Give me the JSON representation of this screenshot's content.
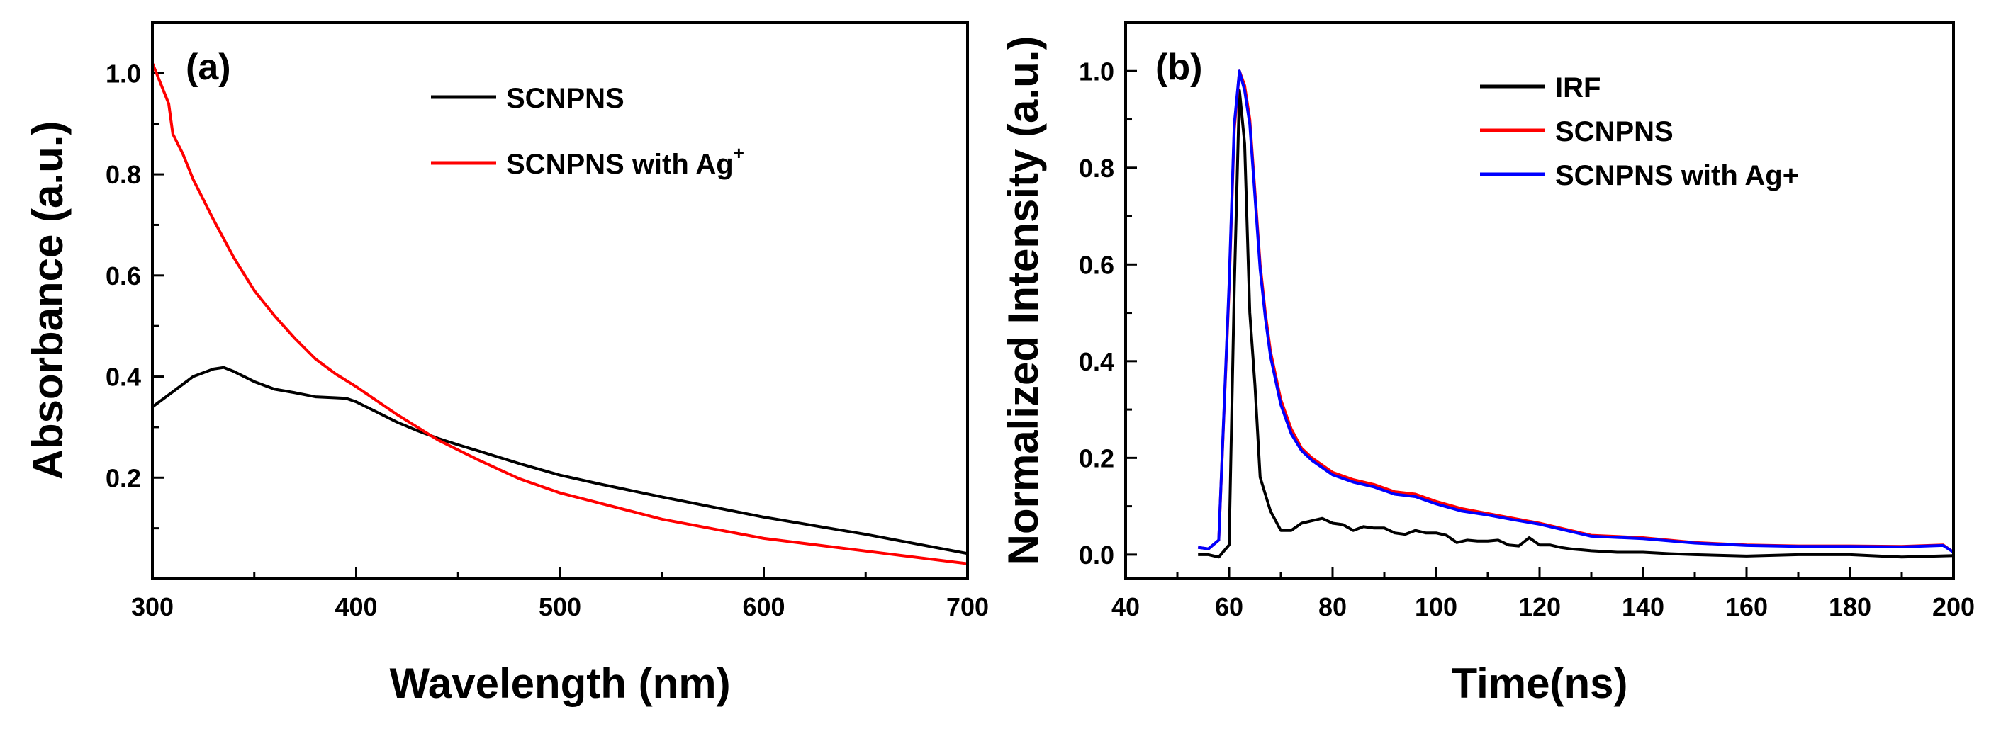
{
  "chart_data": [
    {
      "type": "line",
      "panel_label": "(a)",
      "xlabel": "Wavelength (nm)",
      "ylabel": "Absorbance (a.u.)",
      "xlim": [
        300,
        700
      ],
      "ylim": [
        0,
        1.1
      ],
      "xticks": [
        300,
        400,
        500,
        600,
        700
      ],
      "yticks": [
        0.2,
        0.4,
        0.6,
        0.8,
        1.0
      ],
      "xtick_labels": [
        "300",
        "400",
        "500",
        "600",
        "700"
      ],
      "ytick_labels": [
        "0.2",
        "0.4",
        "0.6",
        "0.8",
        "1.0"
      ],
      "legend_position": "top-right",
      "series": [
        {
          "name": "SCNPNS",
          "color": "#000000",
          "x": [
            300,
            310,
            320,
            330,
            335,
            340,
            350,
            360,
            370,
            380,
            390,
            395,
            400,
            410,
            420,
            430,
            440,
            450,
            460,
            480,
            500,
            520,
            550,
            600,
            650,
            700
          ],
          "y": [
            0.34,
            0.37,
            0.4,
            0.415,
            0.418,
            0.41,
            0.39,
            0.375,
            0.368,
            0.36,
            0.358,
            0.357,
            0.35,
            0.33,
            0.31,
            0.293,
            0.278,
            0.265,
            0.253,
            0.228,
            0.205,
            0.187,
            0.162,
            0.122,
            0.088,
            0.05
          ]
        },
        {
          "name": "SCNPNS with Ag",
          "name_superscript": "+",
          "color": "#ff0000",
          "x": [
            300,
            302,
            305,
            308,
            310,
            315,
            320,
            330,
            340,
            350,
            360,
            370,
            380,
            390,
            400,
            420,
            440,
            460,
            480,
            500,
            550,
            600,
            650,
            700
          ],
          "y": [
            1.02,
            1.0,
            0.97,
            0.94,
            0.88,
            0.84,
            0.79,
            0.71,
            0.635,
            0.57,
            0.52,
            0.475,
            0.435,
            0.405,
            0.38,
            0.325,
            0.275,
            0.235,
            0.198,
            0.17,
            0.118,
            0.08,
            0.055,
            0.03
          ]
        }
      ]
    },
    {
      "type": "line",
      "panel_label": "(b)",
      "xlabel": "Time(ns)",
      "ylabel": "Normalized Intensity (a.u.)",
      "xlim": [
        40,
        200
      ],
      "ylim": [
        -0.05,
        1.1
      ],
      "xticks": [
        40,
        60,
        80,
        100,
        120,
        140,
        160,
        180,
        200
      ],
      "yticks": [
        0.0,
        0.2,
        0.4,
        0.6,
        0.8,
        1.0
      ],
      "xtick_labels": [
        "40",
        "60",
        "80",
        "100",
        "120",
        "140",
        "160",
        "180",
        "200"
      ],
      "ytick_labels": [
        "0.0",
        "0.2",
        "0.4",
        "0.6",
        "0.8",
        "1.0"
      ],
      "legend_position": "top-right",
      "series": [
        {
          "name": "IRF",
          "color": "#000000",
          "x": [
            54,
            56,
            58,
            60,
            61,
            62,
            63,
            64,
            65,
            66,
            68,
            70,
            72,
            74,
            76,
            78,
            80,
            82,
            84,
            86,
            88,
            90,
            92,
            94,
            96,
            98,
            100,
            102,
            104,
            106,
            108,
            110,
            112,
            114,
            116,
            118,
            120,
            122,
            124,
            126,
            128,
            130,
            135,
            140,
            145,
            150,
            160,
            170,
            180,
            190,
            200
          ],
          "y": [
            0.0,
            0.0,
            -0.005,
            0.02,
            0.55,
            0.96,
            0.85,
            0.5,
            0.35,
            0.16,
            0.09,
            0.05,
            0.05,
            0.065,
            0.07,
            0.075,
            0.065,
            0.062,
            0.05,
            0.058,
            0.055,
            0.055,
            0.045,
            0.042,
            0.05,
            0.045,
            0.045,
            0.04,
            0.025,
            0.03,
            0.028,
            0.028,
            0.03,
            0.02,
            0.018,
            0.035,
            0.02,
            0.02,
            0.015,
            0.012,
            0.01,
            0.008,
            0.005,
            0.005,
            0.002,
            0.0,
            -0.003,
            0.0,
            0.0,
            -0.005,
            -0.002
          ]
        },
        {
          "name": "SCNPNS",
          "color": "#ff0000",
          "x": [
            54,
            56,
            58,
            60,
            61,
            62,
            63,
            64,
            65,
            66,
            67,
            68,
            70,
            72,
            74,
            76,
            80,
            84,
            88,
            92,
            96,
            100,
            105,
            110,
            115,
            120,
            130,
            140,
            150,
            160,
            170,
            180,
            190,
            198,
            200
          ],
          "y": [
            0.015,
            0.012,
            0.03,
            0.55,
            0.88,
            1.0,
            0.97,
            0.9,
            0.75,
            0.6,
            0.5,
            0.42,
            0.32,
            0.26,
            0.22,
            0.2,
            0.17,
            0.155,
            0.145,
            0.13,
            0.125,
            0.11,
            0.095,
            0.085,
            0.075,
            0.065,
            0.04,
            0.035,
            0.025,
            0.02,
            0.018,
            0.018,
            0.017,
            0.02,
            0.005
          ]
        },
        {
          "name": "SCNPNS with Ag+",
          "color": "#0000ff",
          "x": [
            54,
            56,
            58,
            60,
            61,
            62,
            63,
            64,
            65,
            66,
            67,
            68,
            70,
            72,
            74,
            76,
            80,
            84,
            88,
            92,
            96,
            100,
            105,
            110,
            115,
            120,
            130,
            140,
            150,
            160,
            170,
            180,
            190,
            198,
            200
          ],
          "y": [
            0.015,
            0.012,
            0.03,
            0.56,
            0.89,
            1.0,
            0.96,
            0.89,
            0.74,
            0.59,
            0.49,
            0.41,
            0.31,
            0.25,
            0.215,
            0.195,
            0.165,
            0.15,
            0.14,
            0.125,
            0.12,
            0.105,
            0.09,
            0.082,
            0.072,
            0.063,
            0.038,
            0.033,
            0.024,
            0.019,
            0.017,
            0.017,
            0.016,
            0.019,
            0.005
          ]
        }
      ]
    }
  ]
}
